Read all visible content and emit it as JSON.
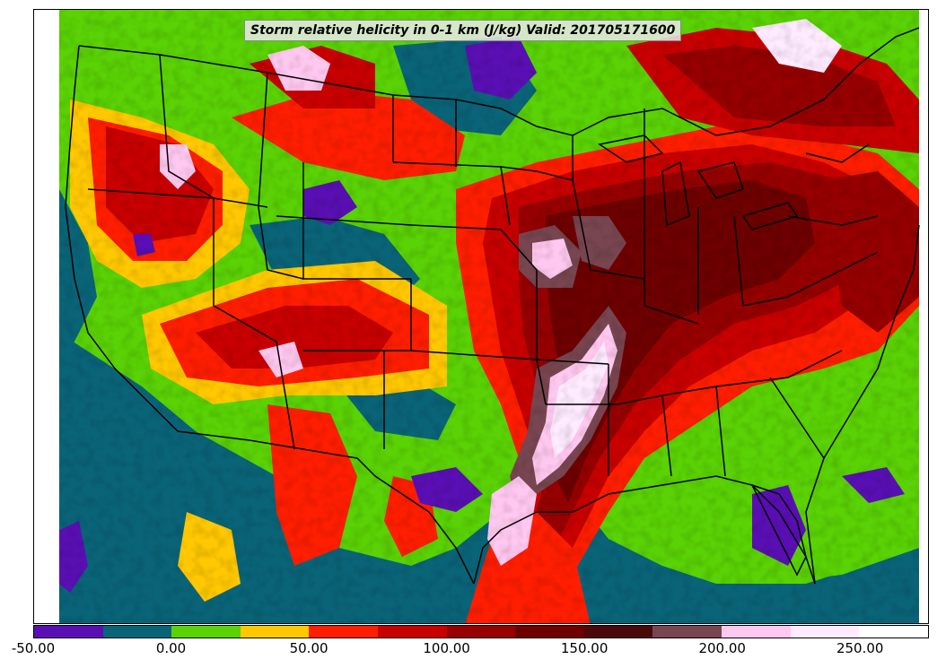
{
  "map": {
    "title": "Storm relative helicity in 0-1 km (J/kg) Valid: 201705171600",
    "region": "Contiguous United States",
    "variable": "Storm relative helicity 0-1 km",
    "units": "J/kg",
    "valid_time": "201705171600"
  },
  "colorbar": {
    "min": -50,
    "max": 275,
    "step": 25,
    "colors": [
      "#5a0fb4",
      "#0a6478",
      "#5ad205",
      "#ffc800",
      "#ff1e00",
      "#c80000",
      "#960000",
      "#6e0000",
      "#4b0a0a",
      "#784650",
      "#ffc8f0",
      "#ffebff",
      "#ffffff"
    ],
    "tick_labels": [
      "-50.00",
      "0.00",
      "50.00",
      "100.00",
      "150.00",
      "200.00",
      "250.00"
    ],
    "tick_values": [
      -50,
      0,
      50,
      100,
      150,
      200,
      250
    ]
  }
}
